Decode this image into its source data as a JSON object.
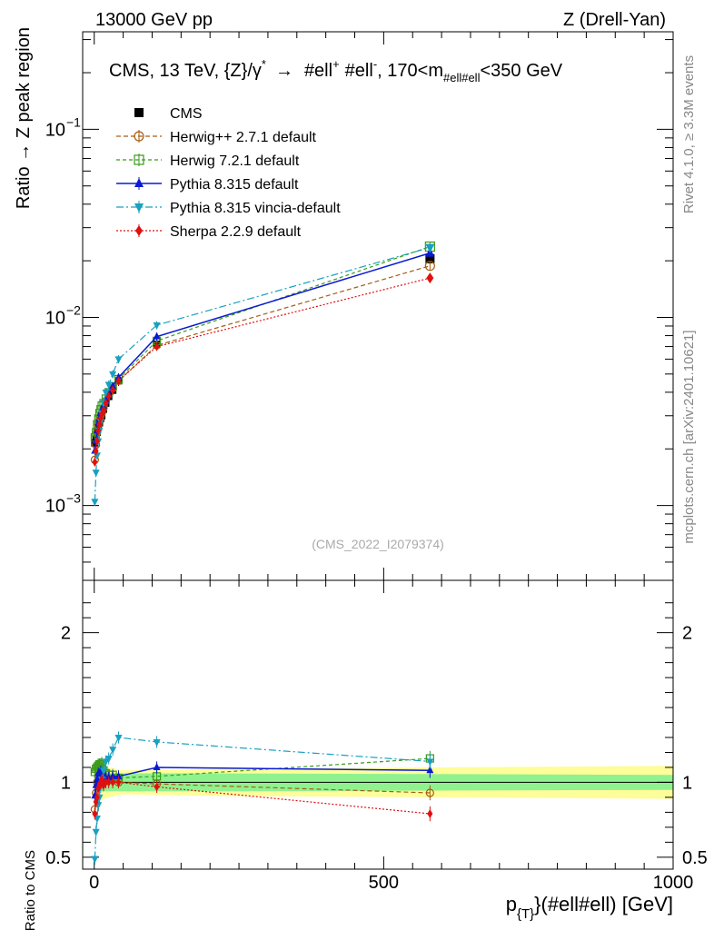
{
  "header": {
    "left": "13000 GeV pp",
    "right": "Z (Drell-Yan)"
  },
  "side_labels": {
    "rivet": "Rivet 4.1.0, ≥ 3.3M events",
    "mcplots": "mcplots.cern.ch [arXiv:2401.10621]"
  },
  "colors": {
    "CMS": "#000000",
    "Herwig++ 2.7.1 default": "#a65d12",
    "Herwig 7.2.1 default": "#3a9a1a",
    "Pythia 8.315 default": "#0a1ad2",
    "Pythia 8.315 vincia-default": "#18a0c0",
    "Sherpa 2.2.9 default": "#e01010",
    "band_inner": "#8ff28f",
    "band_outer": "#fdfd9a"
  },
  "chart_data": [
    {
      "type": "line",
      "panel": "main",
      "title": "CMS, 13 TeV, {Z}/γ* → #ell⁺ #ell⁻, 170<m#ell#ell<350 GeV",
      "title_parts": {
        "prefix": "CMS, 13 TeV, {Z}/",
        "gamma": "γ",
        "star": "*",
        "arrow": "→",
        "ell1": "#ell",
        "plus": "+",
        "ell2": "#ell",
        "minus": "-",
        "range_a": ", 170<m",
        "sub": "#ell#ell",
        "range_b": "<350 GeV"
      },
      "ylabel": "Ratio → Z peak region",
      "yscale": "log",
      "ylim": [
        0.0004,
        0.33
      ],
      "yticks": [
        {
          "value": 0.001,
          "base": "10",
          "exp": "−3"
        },
        {
          "value": 0.01,
          "base": "10",
          "exp": "−2"
        },
        {
          "value": 0.1,
          "base": "10",
          "exp": "−1"
        }
      ],
      "xlim": [
        -20,
        1000
      ],
      "x": [
        1,
        3,
        5,
        7,
        9,
        11,
        13,
        16,
        20,
        25,
        32,
        42,
        108,
        580
      ],
      "series": [
        {
          "name": "CMS",
          "values": [
            0.00215,
            0.00225,
            0.00245,
            0.0026,
            0.00275,
            0.0029,
            0.003,
            0.00325,
            0.0035,
            0.0038,
            0.0041,
            0.0046,
            0.0072,
            0.0205
          ]
        },
        {
          "name": "Herwig++ 2.7.1 default",
          "values": [
            0.00175,
            0.0021,
            0.00245,
            0.0027,
            0.00285,
            0.003,
            0.0031,
            0.0033,
            0.0036,
            0.0039,
            0.0042,
            0.0046,
            0.0071,
            0.0188
          ]
        },
        {
          "name": "Herwig 7.2.1 default",
          "values": [
            0.0023,
            0.00245,
            0.0027,
            0.0029,
            0.0031,
            0.00325,
            0.0034,
            0.0035,
            0.0037,
            0.004,
            0.0043,
            0.0047,
            0.0075,
            0.0238
          ]
        },
        {
          "name": "Pythia 8.315 default",
          "values": [
            0.00195,
            0.0022,
            0.0025,
            0.00275,
            0.0029,
            0.0031,
            0.0032,
            0.0034,
            0.0036,
            0.0039,
            0.0043,
            0.0048,
            0.0079,
            0.022
          ]
        },
        {
          "name": "Pythia 8.315 vincia-default",
          "values": [
            0.00105,
            0.0015,
            0.00185,
            0.0022,
            0.0025,
            0.0028,
            0.0031,
            0.0035,
            0.004,
            0.0044,
            0.005,
            0.006,
            0.0091,
            0.0235
          ]
        },
        {
          "name": "Sherpa 2.2.9 default",
          "values": [
            0.0017,
            0.00195,
            0.0022,
            0.0025,
            0.0027,
            0.0029,
            0.00305,
            0.0032,
            0.0035,
            0.0038,
            0.0041,
            0.0046,
            0.007,
            0.0162
          ]
        }
      ],
      "legend": [
        "CMS",
        "Herwig++ 2.7.1 default",
        "Herwig 7.2.1 default",
        "Pythia 8.315 default",
        "Pythia 8.315 vincia-default",
        "Sherpa 2.2.9 default"
      ],
      "legend_position": "top-left",
      "watermark": "(CMS_2022_I2079374)"
    },
    {
      "type": "line",
      "panel": "ratio",
      "ylabel": "Ratio to CMS",
      "ylim": [
        0.42,
        2.35
      ],
      "yticks": [
        {
          "value": 0.5,
          "label": "0.5"
        },
        {
          "value": 1,
          "label": "1"
        },
        {
          "value": 2,
          "label": "2"
        }
      ],
      "xlabel": "p_{T}(#ell#ell) [GeV]",
      "xlabel_parts": {
        "p": "p",
        "sub": "{T}",
        "rest": "}(#ell#ell) [GeV]"
      },
      "xlim": [
        -20,
        1000
      ],
      "xticks": [
        {
          "value": 0,
          "label": "0"
        },
        {
          "value": 500,
          "label": "500"
        },
        {
          "value": 1000,
          "label": "1000"
        }
      ],
      "x": [
        1,
        3,
        5,
        7,
        9,
        11,
        13,
        16,
        20,
        25,
        32,
        42,
        108,
        580
      ],
      "band": {
        "x": [
          0,
          10,
          25,
          50,
          200,
          1000
        ],
        "inner": [
          0.05,
          0.06,
          0.06,
          0.06,
          0.06,
          0.05
        ],
        "outer": [
          0.12,
          0.12,
          0.1,
          0.08,
          0.09,
          0.11
        ]
      },
      "series": [
        {
          "name": "Herwig++ 2.7.1 default",
          "values": [
            0.82,
            0.93,
            1.0,
            1.04,
            1.03,
            1.03,
            1.03,
            1.02,
            1.03,
            1.02,
            1.02,
            1.0,
            0.99,
            0.93
          ]
        },
        {
          "name": "Herwig 7.2.1 default",
          "values": [
            1.07,
            1.09,
            1.1,
            1.11,
            1.12,
            1.12,
            1.13,
            1.08,
            1.06,
            1.05,
            1.05,
            1.03,
            1.04,
            1.16
          ]
        },
        {
          "name": "Pythia 8.315 default",
          "values": [
            0.91,
            0.98,
            1.02,
            1.06,
            1.05,
            1.07,
            1.06,
            1.05,
            1.03,
            1.03,
            1.04,
            1.04,
            1.1,
            1.08
          ]
        },
        {
          "name": "Pythia 8.315 vincia-default",
          "values": [
            0.49,
            0.67,
            0.76,
            0.85,
            0.9,
            0.97,
            1.02,
            1.08,
            1.14,
            1.16,
            1.22,
            1.3,
            1.27,
            1.14
          ]
        },
        {
          "name": "Sherpa 2.2.9 default",
          "values": [
            0.79,
            0.87,
            0.9,
            0.96,
            0.98,
            1.0,
            1.02,
            0.98,
            1.0,
            1.0,
            1.0,
            1.0,
            0.97,
            0.79
          ]
        }
      ]
    }
  ]
}
